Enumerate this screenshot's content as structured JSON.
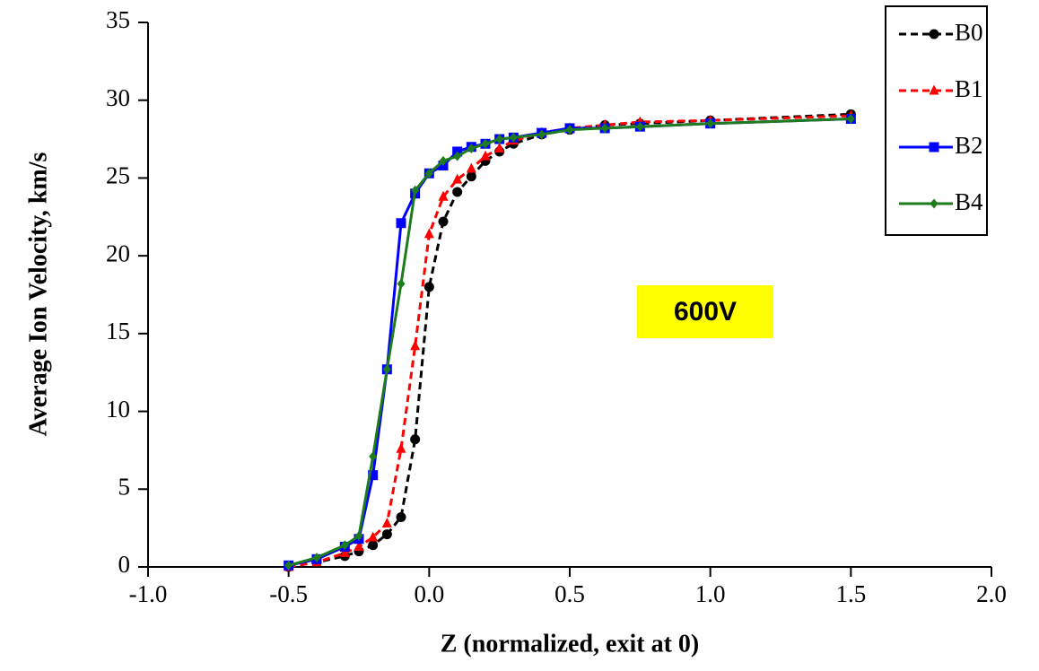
{
  "chart_data": {
    "type": "line",
    "x_label": "Z (normalized, exit at 0)",
    "y_label": "Average Ion Velocity, km/s",
    "annotation": "600V",
    "annotation_color": "#ffff00",
    "x": [
      -0.5,
      -0.4,
      -0.3,
      -0.25,
      -0.2,
      -0.15,
      -0.1,
      -0.05,
      0,
      0.05,
      0.1,
      0.15,
      0.2,
      0.25,
      0.3,
      0.4,
      0.5,
      0.625,
      0.75,
      1.0,
      1.5
    ],
    "series": [
      {
        "name": "B0",
        "color": "#000000",
        "marker": "circle",
        "dashed": true,
        "values": [
          0,
          0.3,
          0.7,
          1.0,
          1.4,
          2.1,
          3.2,
          8.2,
          18.0,
          22.2,
          24.1,
          25.1,
          26.1,
          26.7,
          27.2,
          27.8,
          28.1,
          28.4,
          28.5,
          28.7,
          29.1
        ]
      },
      {
        "name": "B1",
        "color": "#ff0000",
        "marker": "triangle",
        "dashed": true,
        "values": [
          0,
          0.3,
          0.9,
          1.3,
          1.9,
          2.8,
          7.6,
          14.2,
          21.4,
          23.8,
          24.9,
          25.6,
          26.4,
          26.9,
          27.4,
          27.9,
          28.2,
          28.4,
          28.6,
          28.7,
          29.0
        ]
      },
      {
        "name": "B2",
        "color": "#0000ff",
        "marker": "square",
        "dashed": false,
        "values": [
          0.1,
          0.5,
          1.3,
          1.8,
          5.9,
          12.7,
          22.1,
          24.0,
          25.3,
          25.8,
          26.7,
          27.0,
          27.2,
          27.5,
          27.6,
          27.9,
          28.2,
          28.2,
          28.3,
          28.5,
          28.8
        ]
      },
      {
        "name": "B4",
        "color": "#1e7b1e",
        "marker": "diamond",
        "dashed": false,
        "values": [
          0.1,
          0.6,
          1.4,
          2.0,
          7.1,
          12.7,
          18.2,
          24.2,
          25.3,
          26.1,
          26.4,
          26.9,
          27.2,
          27.5,
          27.6,
          27.8,
          28.1,
          28.2,
          28.3,
          28.5,
          28.8
        ]
      }
    ],
    "xlim": [
      -1.0,
      2.0
    ],
    "xticks": [
      {
        "value": -1.0,
        "label": "-1.0"
      },
      -0.5,
      {
        "value": 0.0,
        "label": "0.0"
      },
      0.5,
      {
        "value": 1.0,
        "label": "1.0"
      },
      1.5,
      {
        "value": 2.0,
        "label": "2.0"
      }
    ],
    "ylim": [
      0,
      35
    ],
    "yticks": [
      0,
      5,
      10,
      15,
      20,
      25,
      30,
      35
    ],
    "legend": "top-right",
    "grid": false
  }
}
